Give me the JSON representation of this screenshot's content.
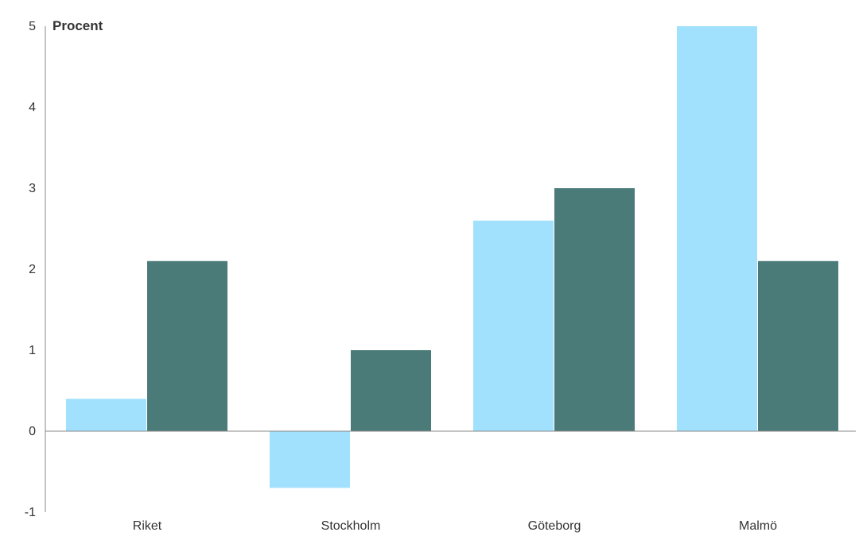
{
  "chart_data": {
    "type": "bar",
    "ylabel": "Procent",
    "categories": [
      "Riket",
      "Stockholm",
      "Göteborg",
      "Malmö"
    ],
    "series": [
      {
        "values": [
          0.4,
          -0.7,
          2.6,
          5.0
        ],
        "color": "#a2e1fd"
      },
      {
        "values": [
          2.1,
          1.0,
          3.0,
          2.1
        ],
        "color": "#4a7b79"
      }
    ],
    "yticks": [
      5,
      4,
      3,
      2,
      1,
      0,
      -1
    ],
    "ylim": [
      -1,
      5
    ],
    "grid": false,
    "legend": "none"
  }
}
